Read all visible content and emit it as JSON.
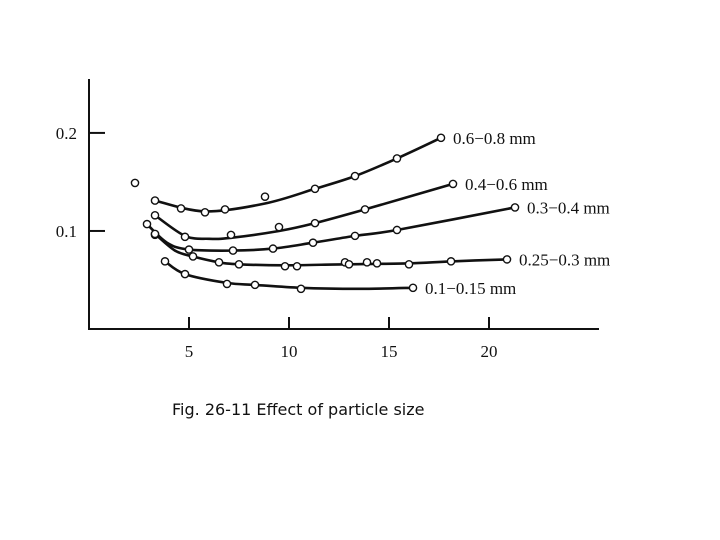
{
  "caption": "Fig. 26-11 Effect of particle size",
  "chart_data": {
    "type": "line",
    "title": "",
    "xlabel": "",
    "ylabel": "",
    "xlim": [
      0,
      25.5
    ],
    "ylim": [
      0,
      0.255
    ],
    "x_ticks": [
      5,
      10,
      15,
      20
    ],
    "x_tick_labels": [
      "5",
      "10",
      "15",
      "20"
    ],
    "y_ticks": [
      0.1,
      0.2
    ],
    "y_tick_labels": [
      "0.1",
      "0.2"
    ],
    "grid": false,
    "legend": "inline-labels-at-line-ends",
    "series": [
      {
        "name": "0.6−0.8 mm",
        "points": [
          [
            2.3,
            0.149
          ],
          [
            3.3,
            0.131
          ],
          [
            4.6,
            0.123
          ],
          [
            5.8,
            0.119
          ],
          [
            6.8,
            0.122
          ],
          [
            8.8,
            0.135
          ],
          [
            11.3,
            0.143
          ],
          [
            13.3,
            0.156
          ],
          [
            15.4,
            0.174
          ],
          [
            17.6,
            0.195
          ]
        ],
        "curve": [
          [
            3.3,
            0.131
          ],
          [
            5.8,
            0.12
          ],
          [
            8.8,
            0.128
          ],
          [
            11.3,
            0.143
          ],
          [
            13.3,
            0.156
          ],
          [
            15.4,
            0.174
          ],
          [
            17.6,
            0.195
          ]
        ]
      },
      {
        "name": "0.4−0.6 mm",
        "points": [
          [
            3.3,
            0.116
          ],
          [
            4.8,
            0.094
          ],
          [
            7.1,
            0.096
          ],
          [
            9.5,
            0.104
          ],
          [
            11.3,
            0.108
          ],
          [
            13.8,
            0.122
          ],
          [
            18.2,
            0.148
          ]
        ],
        "curve": [
          [
            3.3,
            0.116
          ],
          [
            4.8,
            0.095
          ],
          [
            6.0,
            0.092
          ],
          [
            7.1,
            0.093
          ],
          [
            9.5,
            0.1
          ],
          [
            11.3,
            0.108
          ],
          [
            13.8,
            0.122
          ],
          [
            18.2,
            0.148
          ]
        ]
      },
      {
        "name": "0.3−0.4 mm",
        "points": [
          [
            2.9,
            0.107
          ],
          [
            3.3,
            0.096
          ],
          [
            5.0,
            0.081
          ],
          [
            7.2,
            0.08
          ],
          [
            9.2,
            0.082
          ],
          [
            11.2,
            0.088
          ],
          [
            13.3,
            0.095
          ],
          [
            15.4,
            0.101
          ],
          [
            21.3,
            0.124
          ]
        ],
        "curve": [
          [
            2.9,
            0.107
          ],
          [
            3.9,
            0.088
          ],
          [
            5.0,
            0.081
          ],
          [
            7.2,
            0.08
          ],
          [
            9.2,
            0.082
          ],
          [
            11.2,
            0.088
          ],
          [
            13.3,
            0.095
          ],
          [
            15.4,
            0.101
          ],
          [
            21.3,
            0.124
          ]
        ]
      },
      {
        "name": "0.25−0.3 mm",
        "points": [
          [
            3.3,
            0.097
          ],
          [
            5.2,
            0.074
          ],
          [
            6.5,
            0.068
          ],
          [
            7.5,
            0.066
          ],
          [
            9.8,
            0.064
          ],
          [
            10.4,
            0.064
          ],
          [
            12.8,
            0.068
          ],
          [
            13.0,
            0.066
          ],
          [
            13.9,
            0.068
          ],
          [
            14.4,
            0.067
          ],
          [
            16.0,
            0.066
          ],
          [
            18.1,
            0.069
          ],
          [
            20.9,
            0.071
          ]
        ],
        "curve": [
          [
            3.3,
            0.097
          ],
          [
            4.3,
            0.08
          ],
          [
            5.2,
            0.074
          ],
          [
            6.5,
            0.068
          ],
          [
            7.5,
            0.066
          ],
          [
            9.8,
            0.065
          ],
          [
            12.8,
            0.066
          ],
          [
            16.0,
            0.067
          ],
          [
            18.1,
            0.069
          ],
          [
            20.9,
            0.071
          ]
        ]
      },
      {
        "name": "0.1−0.15 mm",
        "points": [
          [
            3.8,
            0.069
          ],
          [
            4.8,
            0.056
          ],
          [
            6.9,
            0.046
          ],
          [
            8.3,
            0.045
          ],
          [
            10.6,
            0.041
          ],
          [
            16.2,
            0.042
          ]
        ],
        "curve": [
          [
            3.8,
            0.069
          ],
          [
            4.8,
            0.056
          ],
          [
            6.9,
            0.047
          ],
          [
            8.3,
            0.045
          ],
          [
            10.6,
            0.042
          ],
          [
            13.5,
            0.041
          ],
          [
            16.2,
            0.042
          ]
        ]
      }
    ]
  }
}
